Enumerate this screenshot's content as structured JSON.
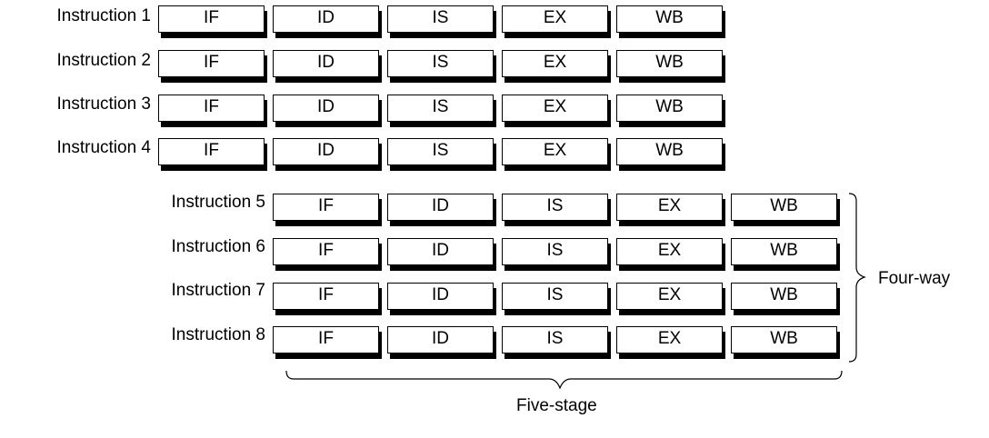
{
  "instructions": [
    {
      "label": "Instruction 1",
      "stages": [
        "IF",
        "ID",
        "IS",
        "EX",
        "WB"
      ]
    },
    {
      "label": "Instruction 2",
      "stages": [
        "IF",
        "ID",
        "IS",
        "EX",
        "WB"
      ]
    },
    {
      "label": "Instruction 3",
      "stages": [
        "IF",
        "ID",
        "IS",
        "EX",
        "WB"
      ]
    },
    {
      "label": "Instruction 4",
      "stages": [
        "IF",
        "ID",
        "IS",
        "EX",
        "WB"
      ]
    },
    {
      "label": "Instruction 5",
      "stages": [
        "IF",
        "ID",
        "IS",
        "EX",
        "WB"
      ]
    },
    {
      "label": "Instruction 6",
      "stages": [
        "IF",
        "ID",
        "IS",
        "EX",
        "WB"
      ]
    },
    {
      "label": "Instruction 7",
      "stages": [
        "IF",
        "ID",
        "IS",
        "EX",
        "WB"
      ]
    },
    {
      "label": "Instruction 8",
      "stages": [
        "IF",
        "ID",
        "IS",
        "EX",
        "WB"
      ]
    }
  ],
  "labels": {
    "four_way": "Four-way",
    "five_stage": "Five-stage"
  }
}
